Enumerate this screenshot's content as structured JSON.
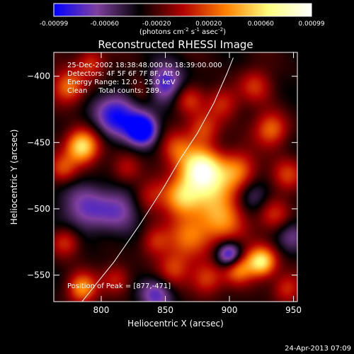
{
  "chart_data": {
    "type": "heatmap",
    "title": "Reconstructed RHESSI Image",
    "colorbar": {
      "ticks": [
        "-0.00099",
        "-0.00060",
        "-0.00020",
        "0.00020",
        "0.00060",
        "0.00099"
      ],
      "tick_values": [
        -0.00099,
        -0.0006,
        -0.0002,
        0.0002,
        0.0006,
        0.00099
      ],
      "range": [
        -0.00099,
        0.00099
      ],
      "unit_parts": [
        "(photons cm",
        "-2",
        " s",
        "-1",
        " asec",
        "-2",
        ")"
      ],
      "colormap": [
        "#0000ff",
        "#8040a0",
        "#000000",
        "#b00000",
        "#ff8000",
        "#ffff80",
        "#ffffff"
      ]
    },
    "xlabel": "Heliocentric X (arcsec)",
    "ylabel": "Heliocentric Y (arcsec)",
    "xlim": [
      763,
      953
    ],
    "ylim": [
      -570,
      -382
    ],
    "xticks": [
      800,
      850,
      900,
      950
    ],
    "yticks": [
      -400,
      -450,
      -500,
      -550
    ],
    "info_lines": [
      "25-Dec-2002 18:38:48.000 to 18:39:00.000",
      "Detectors: 4F 5F 6F 7F 8F, Att 0",
      "Energy Range: 12.0 - 25.0 keV",
      "Clean     Total counts: 289."
    ],
    "peak_text": "Position of Peak = [877,-471]",
    "peak": [
      877,
      -471
    ],
    "sources": [
      {
        "x": 877,
        "y": -470,
        "a": 1.0,
        "s": 11
      },
      {
        "x": 887,
        "y": -485,
        "a": 0.7,
        "s": 14
      },
      {
        "x": 862,
        "y": -492,
        "a": 0.6,
        "s": 10
      },
      {
        "x": 870,
        "y": -520,
        "a": 0.55,
        "s": 12
      },
      {
        "x": 895,
        "y": -510,
        "a": 0.5,
        "s": 12
      },
      {
        "x": 907,
        "y": -470,
        "a": 0.45,
        "s": 10
      },
      {
        "x": 858,
        "y": -455,
        "a": 0.4,
        "s": 9
      },
      {
        "x": 880,
        "y": -440,
        "a": 0.45,
        "s": 9
      },
      {
        "x": 868,
        "y": -418,
        "a": 0.35,
        "s": 8
      },
      {
        "x": 895,
        "y": -420,
        "a": 0.4,
        "s": 9
      },
      {
        "x": 920,
        "y": -407,
        "a": 0.35,
        "s": 9
      },
      {
        "x": 933,
        "y": -440,
        "a": 0.55,
        "s": 9
      },
      {
        "x": 945,
        "y": -475,
        "a": 0.45,
        "s": 9
      },
      {
        "x": 935,
        "y": -505,
        "a": 0.4,
        "s": 9
      },
      {
        "x": 925,
        "y": -540,
        "a": 0.95,
        "s": 8
      },
      {
        "x": 907,
        "y": -545,
        "a": 0.6,
        "s": 8
      },
      {
        "x": 882,
        "y": -553,
        "a": 0.45,
        "s": 9
      },
      {
        "x": 857,
        "y": -545,
        "a": 0.4,
        "s": 9
      },
      {
        "x": 842,
        "y": -525,
        "a": 0.35,
        "s": 8
      },
      {
        "x": 945,
        "y": -560,
        "a": 0.4,
        "s": 8
      },
      {
        "x": 785,
        "y": -453,
        "a": 0.95,
        "s": 9
      },
      {
        "x": 770,
        "y": -470,
        "a": 0.45,
        "s": 8
      },
      {
        "x": 775,
        "y": -408,
        "a": 0.6,
        "s": 9
      },
      {
        "x": 792,
        "y": -390,
        "a": 0.4,
        "s": 8
      },
      {
        "x": 772,
        "y": -525,
        "a": 0.45,
        "s": 8
      },
      {
        "x": 785,
        "y": -560,
        "a": 0.65,
        "s": 8
      },
      {
        "x": 812,
        "y": -553,
        "a": 0.35,
        "s": 8
      },
      {
        "x": 833,
        "y": -410,
        "a": 0.3,
        "s": 8
      },
      {
        "x": 838,
        "y": -490,
        "a": 0.35,
        "s": 9
      },
      {
        "x": 820,
        "y": -470,
        "a": 0.3,
        "s": 8
      },
      {
        "x": 790,
        "y": -500,
        "a": -0.45,
        "s": 14
      },
      {
        "x": 812,
        "y": -430,
        "a": -0.7,
        "s": 12
      },
      {
        "x": 832,
        "y": -440,
        "a": -0.9,
        "s": 8
      },
      {
        "x": 850,
        "y": -405,
        "a": -0.6,
        "s": 10
      },
      {
        "x": 918,
        "y": -490,
        "a": -0.35,
        "s": 9
      },
      {
        "x": 900,
        "y": -535,
        "a": -0.75,
        "s": 7
      },
      {
        "x": 843,
        "y": -565,
        "a": -0.5,
        "s": 9
      },
      {
        "x": 950,
        "y": -520,
        "a": -0.3,
        "s": 9
      },
      {
        "x": 815,
        "y": -500,
        "a": -0.35,
        "s": 11
      }
    ],
    "limb_curve": [
      [
        785,
        -570
      ],
      [
        810,
        -540
      ],
      [
        830,
        -512
      ],
      [
        848,
        -485
      ],
      [
        862,
        -462
      ],
      [
        875,
        -443
      ],
      [
        888,
        -420
      ],
      [
        898,
        -398
      ],
      [
        903,
        -386
      ]
    ]
  },
  "footer_timestamp": "24-Apr-2013 07:09"
}
